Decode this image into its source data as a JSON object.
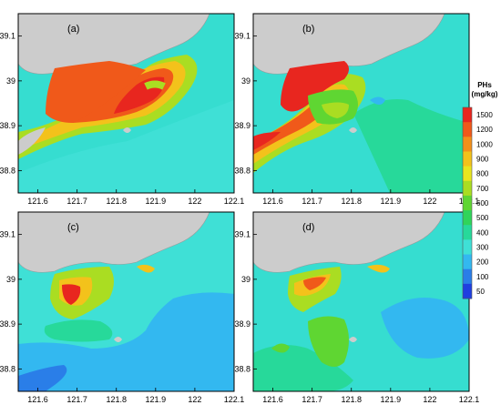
{
  "chart_data": {
    "type": "heatmap",
    "panels": [
      {
        "label": "(a)"
      },
      {
        "label": "(b)"
      },
      {
        "label": "(c)"
      },
      {
        "label": "(d)"
      }
    ],
    "x_ticks": [
      "121.6",
      "121.7",
      "121.8",
      "121.9",
      "122",
      "122.1"
    ],
    "y_ticks": [
      "39.1",
      "39",
      "38.9",
      "38.8"
    ],
    "xlim": [
      121.55,
      122.1
    ],
    "ylim": [
      38.75,
      39.15
    ],
    "colorbar": {
      "title_line1": "PHs",
      "title_line2": "(mg/kg)",
      "levels": [
        "1500",
        "1200",
        "1000",
        "900",
        "800",
        "700",
        "600",
        "500",
        "400",
        "300",
        "200",
        "100",
        "50"
      ],
      "colors": [
        "#e8261f",
        "#f0591a",
        "#f3901a",
        "#f3c21b",
        "#e8e51f",
        "#aadd22",
        "#5fd632",
        "#30d45a",
        "#27d99a",
        "#3fe0d6",
        "#33b8f0",
        "#2a7ee8",
        "#1f3fe0"
      ]
    }
  }
}
